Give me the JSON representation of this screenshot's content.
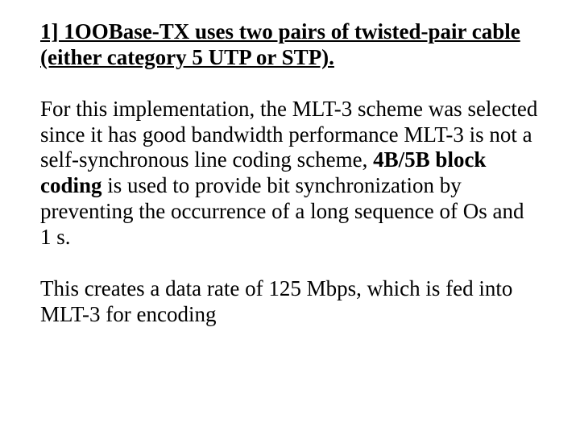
{
  "doc": {
    "font_family": "Times New Roman",
    "font_size_pt": 27,
    "line_height": 1.18,
    "text_color": "#000000",
    "background_color": "#ffffff",
    "heading": "1] 1OOBase-TX uses two pairs of twisted-pair cable (either category 5 UTP or STP).",
    "para1_a": "For this implementation, the MLT-3 scheme was selected since it has good bandwidth performance MLT-3 is not a self-synchronous line coding scheme, ",
    "para1_bold": "4B/5B block coding",
    "para1_b": " is used to provide bit synchronization by preventing the occurrence of a long sequence of Os and 1 s.",
    "para2": "This creates a data rate of 125 Mbps, which is fed into MLT-3 for encoding"
  }
}
